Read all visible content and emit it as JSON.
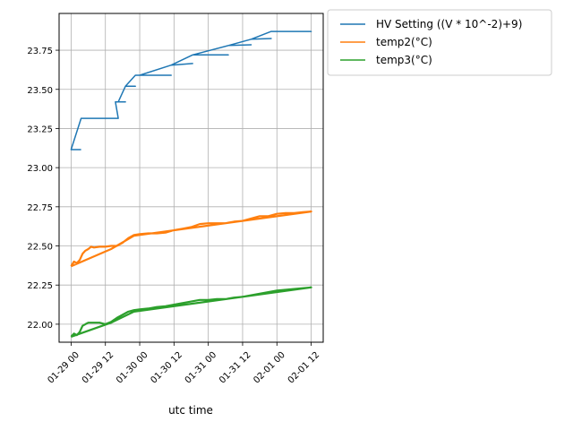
{
  "chart_data": {
    "type": "line",
    "xlabel": "utc time",
    "ylabel": "",
    "title": "",
    "x_ticks": [
      "01-29 00",
      "01-29 12",
      "01-30 00",
      "01-30 12",
      "01-31 00",
      "01-31 12",
      "02-01 00",
      "02-01 12"
    ],
    "x_tick_hours": [
      0,
      12,
      24,
      36,
      48,
      60,
      72,
      84
    ],
    "y_ticks": [
      "22.00",
      "22.25",
      "22.50",
      "22.75",
      "23.00",
      "23.25",
      "23.50",
      "23.75"
    ],
    "y_tick_values": [
      22.0,
      22.25,
      22.5,
      22.75,
      23.0,
      23.25,
      23.5,
      23.75
    ],
    "xlim_hours": [
      -4.2,
      88.2
    ],
    "ylim": [
      21.885,
      23.985
    ],
    "grid": true,
    "legend_position": "outside-top-right",
    "x_unit": "hours since 01-29 00",
    "series": [
      {
        "name": "HV Setting ((V * 10^-2)+9)",
        "color": "#1f77b4",
        "points": [
          [
            3.5,
            23.115
          ],
          [
            0,
            23.115
          ],
          [
            3.5,
            23.315
          ],
          [
            15.5,
            23.315
          ],
          [
            16.5,
            23.315
          ],
          [
            15.5,
            23.42
          ],
          [
            19,
            23.42
          ],
          [
            16.5,
            23.42
          ],
          [
            19,
            23.52
          ],
          [
            22.5,
            23.52
          ],
          [
            19,
            23.52
          ],
          [
            22.5,
            23.59
          ],
          [
            35,
            23.59
          ],
          [
            24,
            23.59
          ],
          [
            35,
            23.655
          ],
          [
            42.5,
            23.665
          ],
          [
            35,
            23.655
          ],
          [
            42.5,
            23.72
          ],
          [
            55,
            23.72
          ],
          [
            42.5,
            23.72
          ],
          [
            55,
            23.78
          ],
          [
            63,
            23.785
          ],
          [
            55,
            23.78
          ],
          [
            63,
            23.82
          ],
          [
            70,
            23.825
          ],
          [
            63,
            23.82
          ],
          [
            70,
            23.87
          ],
          [
            84,
            23.87
          ],
          [
            84,
            23.872
          ]
        ]
      },
      {
        "name": "temp2(°C)",
        "color": "#ff7f0e",
        "points": [
          [
            0,
            22.37
          ],
          [
            1,
            22.4
          ],
          [
            2,
            22.39
          ],
          [
            3,
            22.41
          ],
          [
            4,
            22.45
          ],
          [
            5,
            22.47
          ],
          [
            6,
            22.48
          ],
          [
            7,
            22.495
          ],
          [
            8,
            22.49
          ],
          [
            10,
            22.495
          ],
          [
            12,
            22.495
          ],
          [
            14,
            22.5
          ],
          [
            16,
            22.5
          ],
          [
            18,
            22.52
          ],
          [
            20,
            22.55
          ],
          [
            22,
            22.57
          ],
          [
            24,
            22.575
          ],
          [
            27,
            22.58
          ],
          [
            30,
            22.58
          ],
          [
            33,
            22.585
          ],
          [
            36,
            22.6
          ],
          [
            39,
            22.61
          ],
          [
            42,
            22.62
          ],
          [
            45,
            22.64
          ],
          [
            48,
            22.645
          ],
          [
            51,
            22.645
          ],
          [
            54,
            22.645
          ],
          [
            57,
            22.655
          ],
          [
            60,
            22.66
          ],
          [
            63,
            22.675
          ],
          [
            66,
            22.69
          ],
          [
            69,
            22.69
          ],
          [
            72,
            22.705
          ],
          [
            75,
            22.71
          ],
          [
            78,
            22.71
          ],
          [
            81,
            22.715
          ],
          [
            84,
            22.72
          ],
          [
            22,
            22.565
          ],
          [
            14,
            22.48
          ],
          [
            0,
            22.37
          ]
        ]
      },
      {
        "name": "temp3(°C)",
        "color": "#2ca02c",
        "points": [
          [
            0,
            21.92
          ],
          [
            1,
            21.94
          ],
          [
            2,
            21.93
          ],
          [
            3,
            21.95
          ],
          [
            4,
            21.99
          ],
          [
            5,
            22.0
          ],
          [
            6,
            22.01
          ],
          [
            8,
            22.01
          ],
          [
            10,
            22.01
          ],
          [
            12,
            22.0
          ],
          [
            14,
            22.015
          ],
          [
            16,
            22.04
          ],
          [
            18,
            22.06
          ],
          [
            20,
            22.08
          ],
          [
            22,
            22.09
          ],
          [
            24,
            22.095
          ],
          [
            27,
            22.1
          ],
          [
            30,
            22.11
          ],
          [
            33,
            22.115
          ],
          [
            36,
            22.125
          ],
          [
            39,
            22.135
          ],
          [
            42,
            22.145
          ],
          [
            45,
            22.155
          ],
          [
            48,
            22.155
          ],
          [
            51,
            22.16
          ],
          [
            54,
            22.16
          ],
          [
            57,
            22.17
          ],
          [
            60,
            22.175
          ],
          [
            63,
            22.185
          ],
          [
            66,
            22.195
          ],
          [
            69,
            22.205
          ],
          [
            72,
            22.215
          ],
          [
            75,
            22.22
          ],
          [
            78,
            22.225
          ],
          [
            81,
            22.23
          ],
          [
            84,
            22.235
          ],
          [
            22,
            22.08
          ],
          [
            14,
            22.01
          ],
          [
            0,
            21.92
          ]
        ]
      }
    ]
  }
}
